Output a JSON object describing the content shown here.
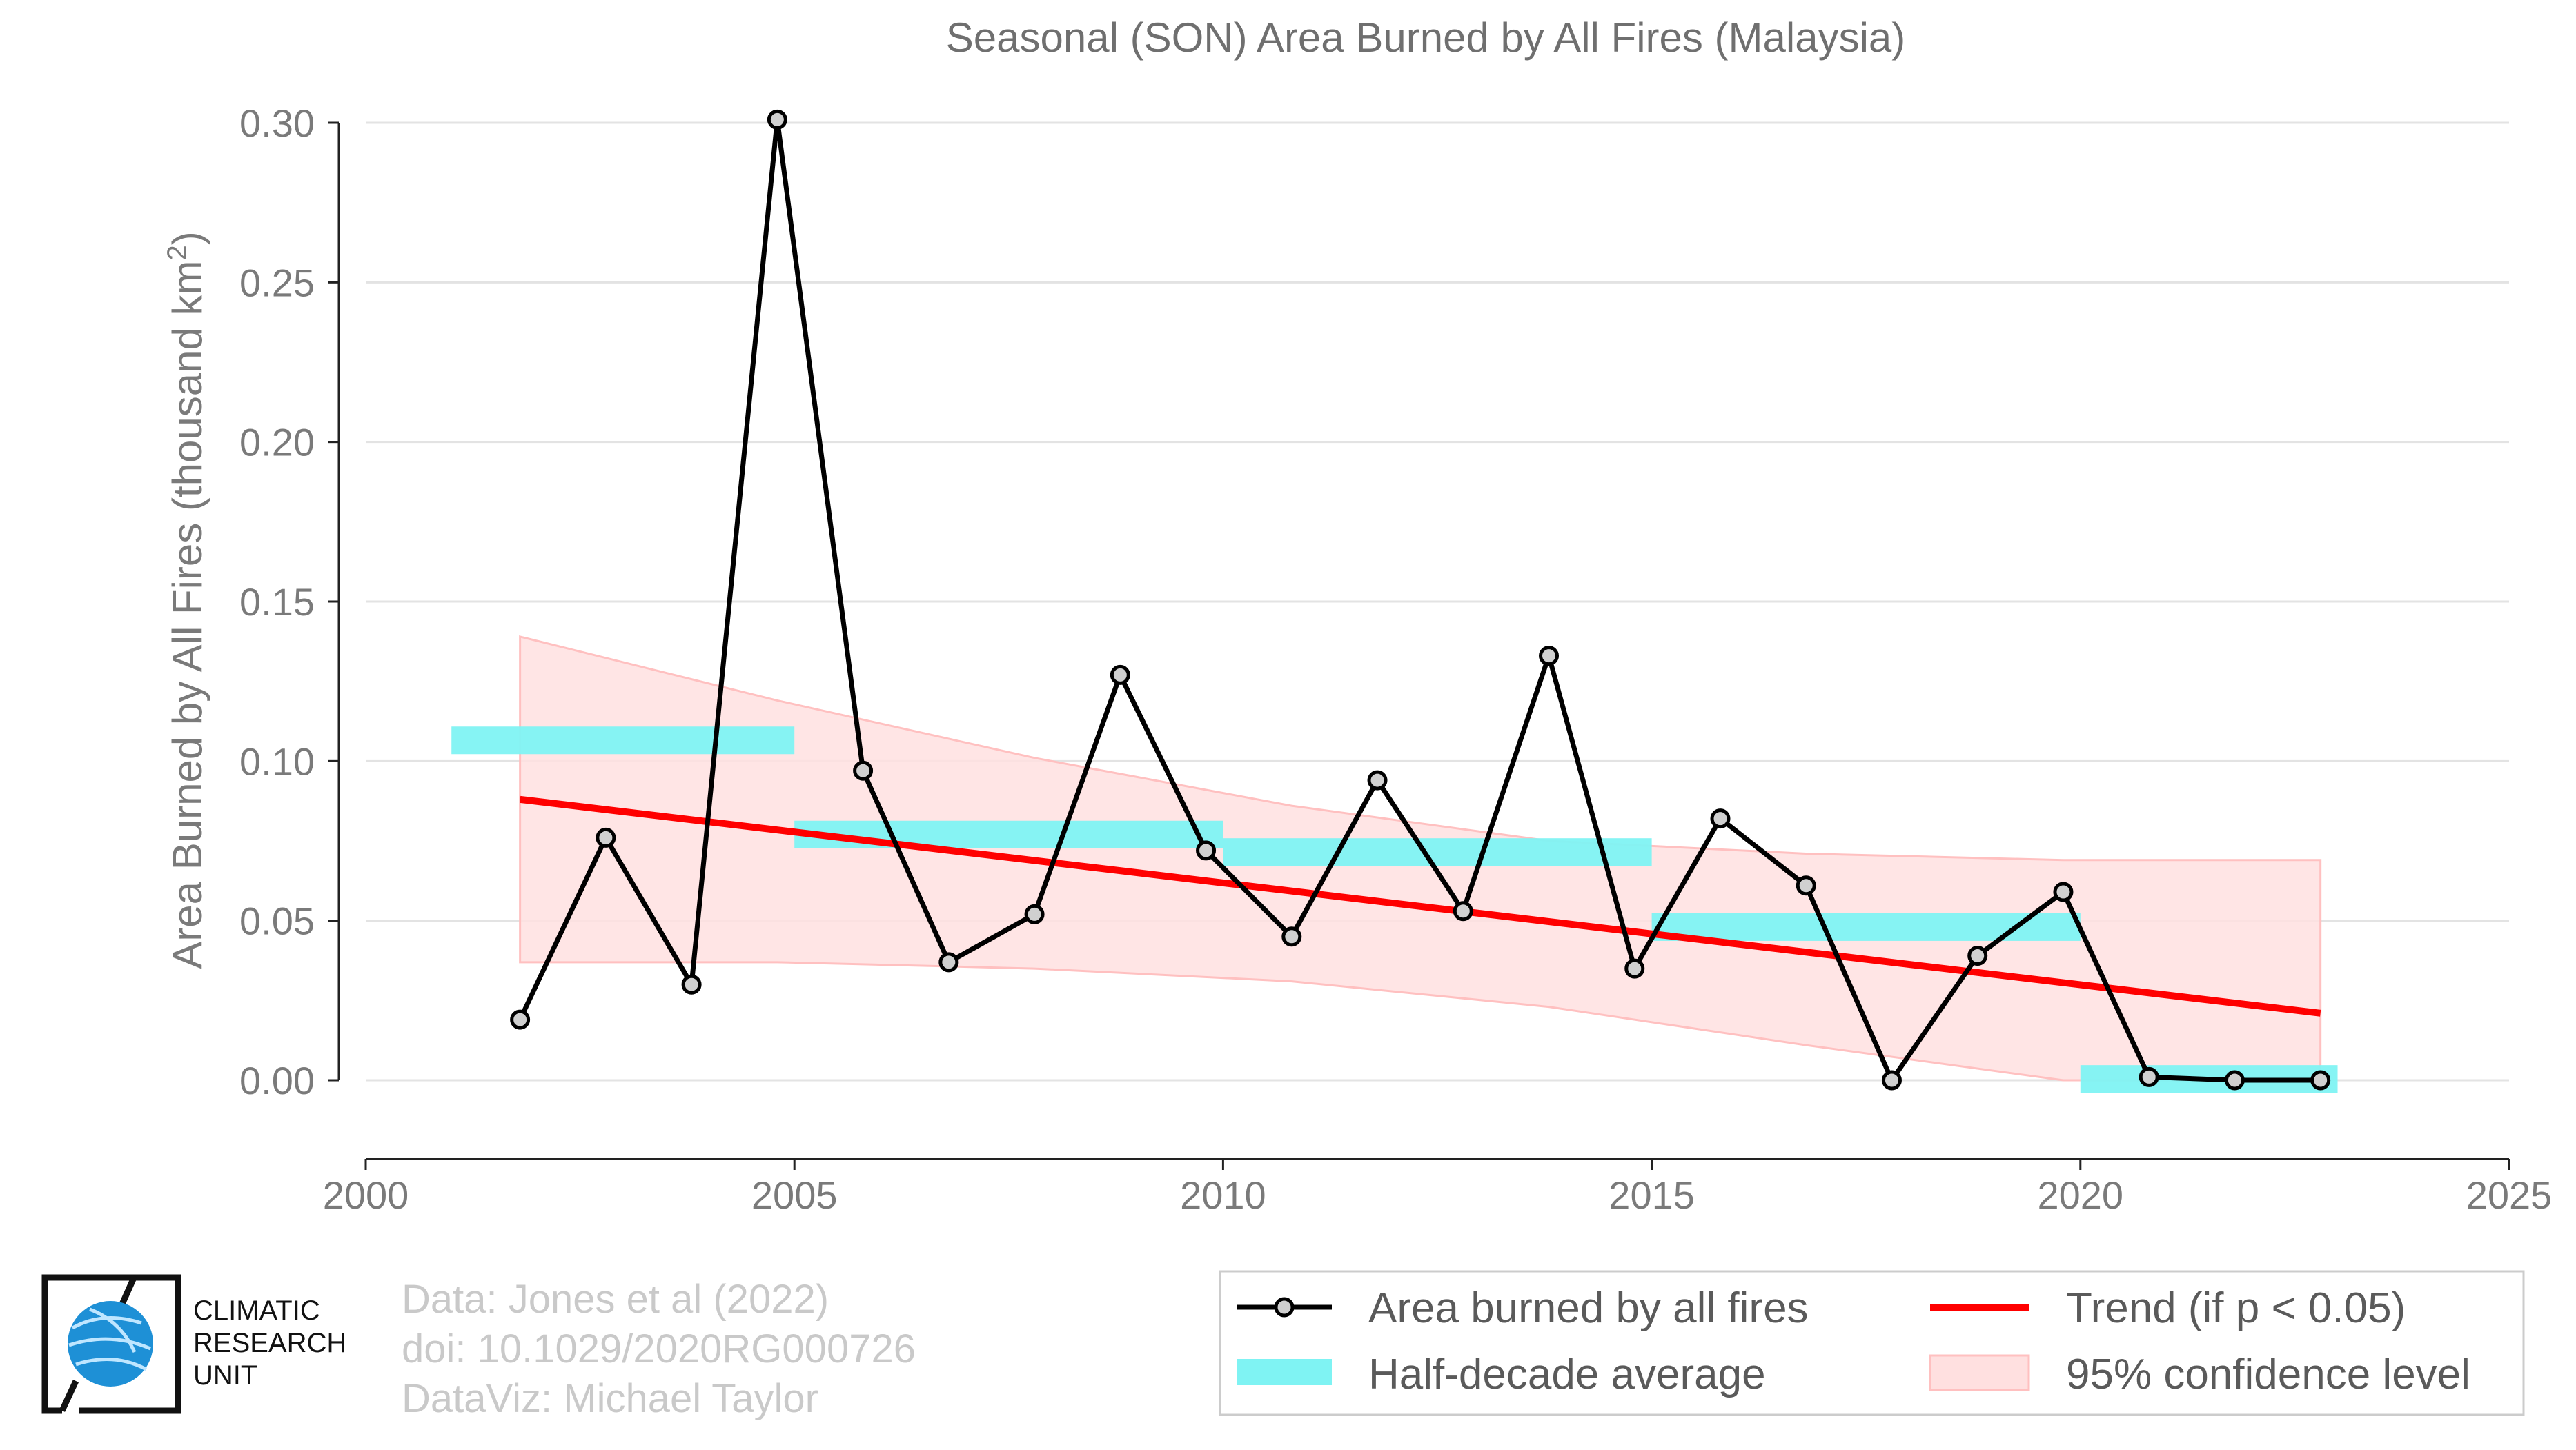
{
  "chart_data": {
    "type": "line",
    "title": "Seasonal (SON) Area Burned by All Fires (Malaysia)",
    "ylabel": "Area Burned by All Fires (thousand km",
    "ylabel_sup": "2",
    "ylabel_close": ")",
    "xlabel": "",
    "xlim": [
      2000,
      2025
    ],
    "ylim": [
      -0.024,
      0.3
    ],
    "xticks": [
      2000,
      2005,
      2010,
      2015,
      2020,
      2025
    ],
    "xtick_labels": [
      "2000",
      "2005",
      "2010",
      "2015",
      "2020",
      "2025"
    ],
    "yticks": [
      0.0,
      0.05,
      0.1,
      0.15,
      0.2,
      0.25,
      0.3
    ],
    "ytick_labels": [
      "0.00",
      "0.05",
      "0.10",
      "0.15",
      "0.20",
      "0.25",
      "0.30"
    ],
    "grid": "horizontal",
    "series": [
      {
        "name": "Area burned by all fires",
        "color": "#000000",
        "marker_fill": "#d0d0d0",
        "x": [
          2001.8,
          2002.8,
          2003.8,
          2004.8,
          2005.8,
          2006.8,
          2007.8,
          2008.8,
          2009.8,
          2010.8,
          2011.8,
          2012.8,
          2013.8,
          2014.8,
          2015.8,
          2016.8,
          2017.8,
          2018.8,
          2019.8,
          2020.8,
          2021.8,
          2022.8
        ],
        "values": [
          0.019,
          0.076,
          0.03,
          0.301,
          0.097,
          0.037,
          0.052,
          0.127,
          0.072,
          0.045,
          0.094,
          0.053,
          0.133,
          0.035,
          0.082,
          0.061,
          0.0,
          0.039,
          0.059,
          0.001,
          0.0,
          0.0
        ]
      }
    ],
    "half_decade_average": {
      "name": "Half-decade average",
      "color": "#7ff3f3",
      "segments": [
        {
          "x0": 2001.0,
          "x1": 2005.0,
          "value": 0.1065
        },
        {
          "x0": 2005.0,
          "x1": 2010.0,
          "value": 0.077
        },
        {
          "x0": 2010.0,
          "x1": 2015.0,
          "value": 0.0715
        },
        {
          "x0": 2015.0,
          "x1": 2020.0,
          "value": 0.048
        },
        {
          "x0": 2020.0,
          "x1": 2023.0,
          "value": 0.0004
        }
      ]
    },
    "trend": {
      "name": "Trend (if p < 0.05)",
      "color": "#ff0000",
      "x": [
        2001.8,
        2022.8
      ],
      "values": [
        0.088,
        0.021
      ]
    },
    "confidence_band": {
      "name": "95% confidence level",
      "color": "#ffe0e0",
      "edge_color": "#ffc0c0",
      "x": [
        2001.8,
        2004.8,
        2007.8,
        2010.8,
        2013.8,
        2016.8,
        2019.8,
        2022.8
      ],
      "upper": [
        0.139,
        0.119,
        0.101,
        0.086,
        0.075,
        0.071,
        0.069,
        0.069
      ],
      "lower": [
        0.037,
        0.037,
        0.035,
        0.031,
        0.023,
        0.011,
        0.0,
        0.0
      ]
    },
    "legend": {
      "placement": "bottom-right",
      "entries": [
        {
          "label": "Area burned by all fires",
          "kind": "line-marker"
        },
        {
          "label": "Trend (if p < 0.05)",
          "kind": "line-red"
        },
        {
          "label": "Half-decade average",
          "kind": "patch-cyan"
        },
        {
          "label": "95% confidence level",
          "kind": "patch-pink"
        }
      ]
    }
  },
  "credits": {
    "line1": "Data: Jones et al (2022)",
    "line2": "doi: 10.1029/2020RG000726",
    "line3": "DataViz: Michael Taylor"
  },
  "logo": {
    "name": "Climatic Research Unit",
    "lines": [
      "CLIMATIC",
      "RESEARCH",
      "UNIT"
    ]
  }
}
